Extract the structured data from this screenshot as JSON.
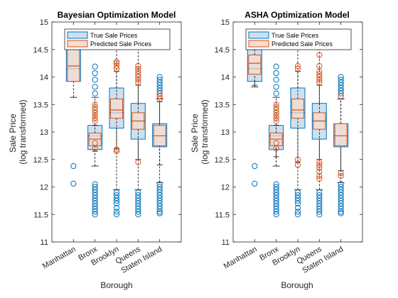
{
  "chart_data": [
    {
      "type": "boxplot",
      "title": "Bayesian Optimization Model",
      "xlabel": "Borough",
      "ylabel": "Sale Price",
      "ylabel_line2": "(log transformed)",
      "ylim": [
        11,
        15
      ],
      "yticks": [
        "11",
        "11.5",
        "12",
        "12.5",
        "13",
        "13.5",
        "14",
        "14.5",
        "15"
      ],
      "grid": false,
      "legend_position": "top",
      "categories": [
        "Manhattan",
        "Bronx",
        "Brooklyn",
        "Queens",
        "Staten Island"
      ],
      "series": [
        {
          "name": "True Sale Prices",
          "color": "#0072BD",
          "fill": "#cde0f0",
          "boxes": [
            {
              "q1": 13.92,
              "median": 14.15,
              "q3": 14.5,
              "whisker_low": 13.63,
              "whisker_high": 14.5,
              "outliers": [
                12.38,
                12.06
              ]
            },
            {
              "q1": 12.68,
              "median": 12.93,
              "q3": 13.12,
              "whisker_low": 12.38,
              "whisker_high": 13.63,
              "outliers": [
                12.05,
                12.0,
                11.95,
                11.9,
                11.85,
                11.8,
                11.75,
                11.7,
                11.65,
                11.6,
                11.55,
                11.5,
                13.7,
                13.82,
                13.95,
                14.07,
                14.19
              ]
            },
            {
              "q1": 13.07,
              "median": 13.35,
              "q3": 13.8,
              "whisker_low": 11.95,
              "whisker_high": 14.5,
              "outliers": [
                11.9,
                11.85,
                11.8,
                11.75,
                11.7,
                11.62,
                11.55,
                11.5
              ]
            },
            {
              "q1": 12.87,
              "median": 13.2,
              "q3": 13.52,
              "whisker_low": 11.95,
              "whisker_high": 14.5,
              "outliers": [
                11.9,
                11.85,
                11.8,
                11.75,
                11.7,
                11.65,
                11.6,
                11.55,
                11.5
              ]
            },
            {
              "q1": 12.73,
              "median": 12.93,
              "q3": 13.15,
              "whisker_low": 12.08,
              "whisker_high": 13.6,
              "outliers": [
                12.05,
                12.0,
                11.95,
                11.9,
                11.85,
                11.8,
                11.75,
                11.7,
                11.65,
                11.6,
                11.55,
                11.52,
                13.65,
                13.7,
                13.75,
                13.8,
                13.85,
                13.9,
                13.95,
                14.0
              ]
            }
          ]
        },
        {
          "name": "Predicted Sale Prices",
          "color": "#D95319",
          "fill": "#f7dccf",
          "boxes": [
            {
              "q1": 13.92,
              "median": 14.2,
              "q3": 14.5,
              "whisker_low": 13.92,
              "whisker_high": 14.5,
              "outliers": []
            },
            {
              "q1": 12.75,
              "median": 12.87,
              "q3": 12.98,
              "whisker_low": 12.65,
              "whisker_high": 13.12,
              "outliers": [
                12.8,
                12.7,
                13.2,
                13.25,
                13.3,
                13.35,
                13.4,
                13.45,
                13.5
              ]
            },
            {
              "q1": 13.25,
              "median": 13.4,
              "q3": 13.6,
              "whisker_low": 12.7,
              "whisker_high": 14.1,
              "outliers": [
                12.65,
                12.68,
                14.15,
                14.2,
                14.25,
                14.28
              ]
            },
            {
              "q1": 13.05,
              "median": 13.2,
              "q3": 13.35,
              "whisker_low": 12.5,
              "whisker_high": 13.85,
              "outliers": [
                12.45,
                13.9,
                13.95,
                14.0,
                14.05,
                14.1,
                14.15,
                14.2
              ]
            },
            {
              "q1": 12.75,
              "median": 12.93,
              "q3": 13.12,
              "whisker_low": 12.4,
              "whisker_high": 13.55,
              "outliers": [
                13.6,
                13.65,
                13.7
              ]
            }
          ]
        }
      ]
    },
    {
      "type": "boxplot",
      "title": "ASHA Optimization Model",
      "xlabel": "Borough",
      "ylabel": "Sale Price",
      "ylabel_line2": "(log transformed)",
      "ylim": [
        11,
        15
      ],
      "yticks": [
        "11",
        "11.5",
        "12",
        "12.5",
        "13",
        "13.5",
        "14",
        "14.5",
        "15"
      ],
      "grid": false,
      "legend_position": "top",
      "categories": [
        "Manhattan",
        "Bronx",
        "Brooklyn",
        "Queens",
        "Staten Island"
      ],
      "series": [
        {
          "name": "True Sale Prices",
          "color": "#0072BD",
          "fill": "#cde0f0",
          "boxes": [
            {
              "q1": 13.92,
              "median": 14.15,
              "q3": 14.5,
              "whisker_low": 13.82,
              "whisker_high": 14.5,
              "outliers": [
                12.38,
                12.06
              ]
            },
            {
              "q1": 12.68,
              "median": 12.93,
              "q3": 13.12,
              "whisker_low": 12.38,
              "whisker_high": 13.63,
              "outliers": [
                12.05,
                12.0,
                11.95,
                11.9,
                11.85,
                11.8,
                11.75,
                11.7,
                11.65,
                11.6,
                11.55,
                11.5,
                13.7,
                13.82,
                13.95,
                14.07,
                14.19
              ]
            },
            {
              "q1": 13.07,
              "median": 13.35,
              "q3": 13.8,
              "whisker_low": 11.95,
              "whisker_high": 14.5,
              "outliers": [
                11.9,
                11.85,
                11.8,
                11.75,
                11.7,
                11.62,
                11.55,
                11.5
              ]
            },
            {
              "q1": 12.87,
              "median": 13.2,
              "q3": 13.52,
              "whisker_low": 11.95,
              "whisker_high": 14.5,
              "outliers": [
                11.9,
                11.85,
                11.8,
                11.75,
                11.7,
                11.65,
                11.6,
                11.55,
                11.5
              ]
            },
            {
              "q1": 12.73,
              "median": 12.93,
              "q3": 13.15,
              "whisker_low": 12.08,
              "whisker_high": 13.6,
              "outliers": [
                12.05,
                12.0,
                11.95,
                11.9,
                11.85,
                11.8,
                11.75,
                11.7,
                11.65,
                11.6,
                11.55,
                11.52,
                13.65,
                13.7,
                13.75,
                13.8,
                13.85,
                13.9,
                13.95,
                14.0
              ]
            }
          ]
        },
        {
          "name": "Predicted Sale Prices",
          "color": "#D95319",
          "fill": "#f7dccf",
          "boxes": [
            {
              "q1": 14.05,
              "median": 14.25,
              "q3": 14.4,
              "whisker_low": 13.85,
              "whisker_high": 14.5,
              "outliers": []
            },
            {
              "q1": 12.75,
              "median": 12.87,
              "q3": 12.98,
              "whisker_low": 12.55,
              "whisker_high": 13.12,
              "outliers": [
                12.8,
                12.7,
                13.2,
                13.25,
                13.3,
                13.35,
                13.4,
                13.45,
                13.5
              ]
            },
            {
              "q1": 13.25,
              "median": 13.4,
              "q3": 13.6,
              "whisker_low": 12.45,
              "whisker_high": 14.1,
              "outliers": [
                12.4,
                12.5,
                14.15,
                14.2
              ]
            },
            {
              "q1": 13.05,
              "median": 13.2,
              "q3": 13.35,
              "whisker_low": 12.5,
              "whisker_high": 13.85,
              "outliers": [
                12.15,
                12.2,
                12.28,
                12.35,
                12.4,
                12.45,
                13.9,
                13.95,
                14.0,
                14.05,
                14.1,
                14.2,
                14.4
              ]
            },
            {
              "q1": 12.75,
              "median": 12.93,
              "q3": 13.15,
              "whisker_low": 12.3,
              "whisker_high": 13.6,
              "outliers": [
                12.2,
                12.25,
                13.65
              ]
            }
          ]
        }
      ]
    }
  ]
}
